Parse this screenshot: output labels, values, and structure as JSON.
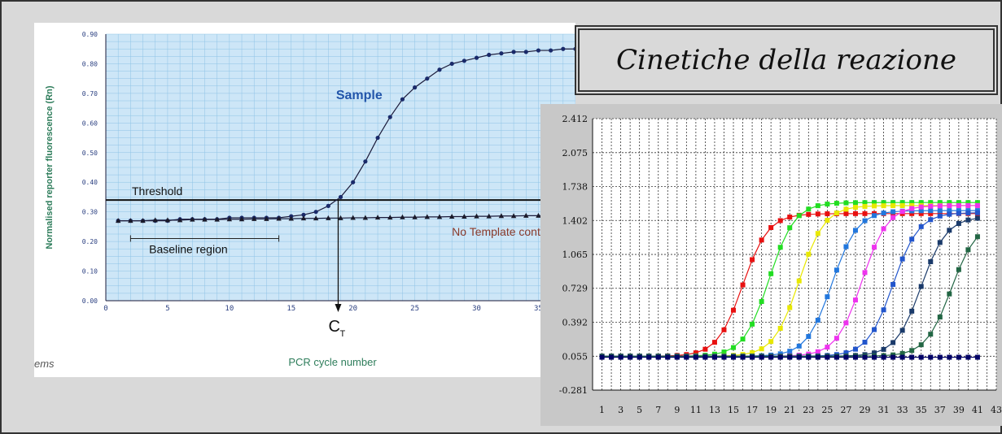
{
  "slide": {
    "title": "Cinetiche della reazione",
    "footer_fragment": "ems"
  },
  "chart_data": [
    {
      "type": "line",
      "title": "",
      "xlabel": "PCR cycle number",
      "ylabel": "Normalised reporter fluorescence (Rn)",
      "xlim": [
        0,
        38
      ],
      "ylim": [
        0,
        0.9
      ],
      "xticks": [
        0,
        5,
        10,
        15,
        20,
        25,
        30,
        35
      ],
      "yticks": [
        "0.00",
        "0.10",
        "0.20",
        "0.30",
        "0.40",
        "0.50",
        "0.60",
        "0.70",
        "0.80",
        "0.90"
      ],
      "grid": true,
      "annotations": {
        "sample": "Sample",
        "threshold": "Threshold",
        "baseline": "Baseline region",
        "ntc": "No Template control",
        "ct": "C",
        "ct_sub": "T"
      },
      "threshold_value": 0.34,
      "baseline_range": [
        2,
        14
      ],
      "ct_cycle": 18.8,
      "series": [
        {
          "name": "Sample",
          "marker": "circle",
          "x": [
            1,
            2,
            3,
            4,
            5,
            6,
            7,
            8,
            9,
            10,
            11,
            12,
            13,
            14,
            15,
            16,
            17,
            18,
            19,
            20,
            21,
            22,
            23,
            24,
            25,
            26,
            27,
            28,
            29,
            30,
            31,
            32,
            33,
            34,
            35,
            36,
            37,
            38
          ],
          "y": [
            0.27,
            0.27,
            0.27,
            0.27,
            0.27,
            0.275,
            0.275,
            0.275,
            0.275,
            0.28,
            0.28,
            0.28,
            0.28,
            0.28,
            0.285,
            0.29,
            0.3,
            0.32,
            0.35,
            0.4,
            0.47,
            0.55,
            0.62,
            0.68,
            0.72,
            0.75,
            0.78,
            0.8,
            0.81,
            0.82,
            0.83,
            0.835,
            0.84,
            0.84,
            0.845,
            0.845,
            0.85,
            0.85
          ]
        },
        {
          "name": "No Template control",
          "marker": "triangle",
          "x": [
            1,
            2,
            3,
            4,
            5,
            6,
            7,
            8,
            9,
            10,
            11,
            12,
            13,
            14,
            15,
            16,
            17,
            18,
            19,
            20,
            21,
            22,
            23,
            24,
            25,
            26,
            27,
            28,
            29,
            30,
            31,
            32,
            33,
            34,
            35,
            36,
            37,
            38
          ],
          "y": [
            0.27,
            0.27,
            0.27,
            0.272,
            0.272,
            0.272,
            0.274,
            0.274,
            0.274,
            0.275,
            0.275,
            0.276,
            0.276,
            0.277,
            0.277,
            0.278,
            0.278,
            0.279,
            0.279,
            0.28,
            0.28,
            0.281,
            0.281,
            0.282,
            0.282,
            0.283,
            0.283,
            0.284,
            0.284,
            0.285,
            0.285,
            0.286,
            0.286,
            0.287,
            0.287,
            0.288,
            0.288,
            0.289
          ]
        }
      ],
      "colors": {
        "plot_bg": "#cde6f7",
        "grid": "#8ec3e6",
        "curve": "#1a1a3a",
        "sample_label": "#2255aa",
        "ntc_label": "#8a3a2a",
        "axis_label": "#2e7d5b"
      }
    },
    {
      "type": "line",
      "title": "",
      "xlabel": "",
      "ylabel": "",
      "xlim": [
        0,
        43
      ],
      "ylim": [
        -0.281,
        2.412
      ],
      "yticks": [
        "2.412",
        "2.075",
        "1.738",
        "1.402",
        "1.065",
        "0.729",
        "0.392",
        "0.055",
        "-0.281"
      ],
      "xticks": [
        1,
        3,
        5,
        7,
        9,
        11,
        13,
        15,
        17,
        19,
        21,
        23,
        25,
        27,
        29,
        31,
        33,
        35,
        37,
        39,
        41,
        43
      ],
      "grid": true,
      "series": [
        {
          "color": "#e81010",
          "ct": 16.0,
          "plateau": 1.47
        },
        {
          "color": "#22dd22",
          "ct": 18.8,
          "plateau": 1.58
        },
        {
          "color": "#e8e800",
          "ct": 22.0,
          "plateau": 1.55
        },
        {
          "color": "#2277dd",
          "ct": 25.5,
          "plateau": 1.5
        },
        {
          "color": "#ee33ee",
          "ct": 28.7,
          "plateau": 1.55
        },
        {
          "color": "#2255cc",
          "ct": 32.0,
          "plateau": 1.48
        },
        {
          "color": "#1a3a6a",
          "ct": 35.0,
          "plateau": 1.44
        },
        {
          "color": "#226644",
          "ct": 38.2,
          "plateau": 1.39
        },
        {
          "color": "#000066",
          "ct": 99,
          "plateau": 0.0
        }
      ],
      "baseline": 0.055
    }
  ]
}
